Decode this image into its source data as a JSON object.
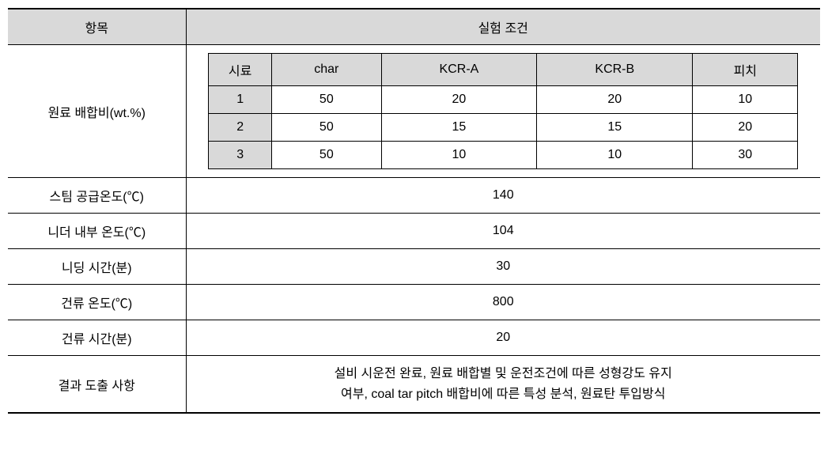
{
  "table": {
    "headers": {
      "item": "항목",
      "condition": "실험 조건"
    },
    "rows": {
      "mixing_ratio": {
        "label": "원료 배합비(wt.%)",
        "inner": {
          "columns": [
            "시료",
            "char",
            "KCR-A",
            "KCR-B",
            "피치"
          ],
          "data": [
            [
              "1",
              "50",
              "20",
              "20",
              "10"
            ],
            [
              "2",
              "50",
              "15",
              "15",
              "20"
            ],
            [
              "3",
              "50",
              "10",
              "10",
              "30"
            ]
          ]
        }
      },
      "steam_temp": {
        "label": "스팀 공급온도(℃)",
        "value": "140"
      },
      "kneader_temp": {
        "label": "니더 내부 온도(℃)",
        "value": "104"
      },
      "kneading_time": {
        "label": "니딩 시간(분)",
        "value": "30"
      },
      "carbonization_temp": {
        "label": "건류 온도(℃)",
        "value": "800"
      },
      "carbonization_time": {
        "label": "건류 시간(분)",
        "value": "20"
      },
      "results": {
        "label": "결과 도출 사항",
        "value_line1": "설비 시운전 완료, 원료 배합별 및 운전조건에 따른 성형강도 유지",
        "value_line2": "여부, coal tar pitch 배합비에 따른 특성 분석, 원료탄 투입방식"
      }
    }
  },
  "colors": {
    "header_bg": "#d9d9d9",
    "border": "#000000",
    "background": "#ffffff"
  }
}
